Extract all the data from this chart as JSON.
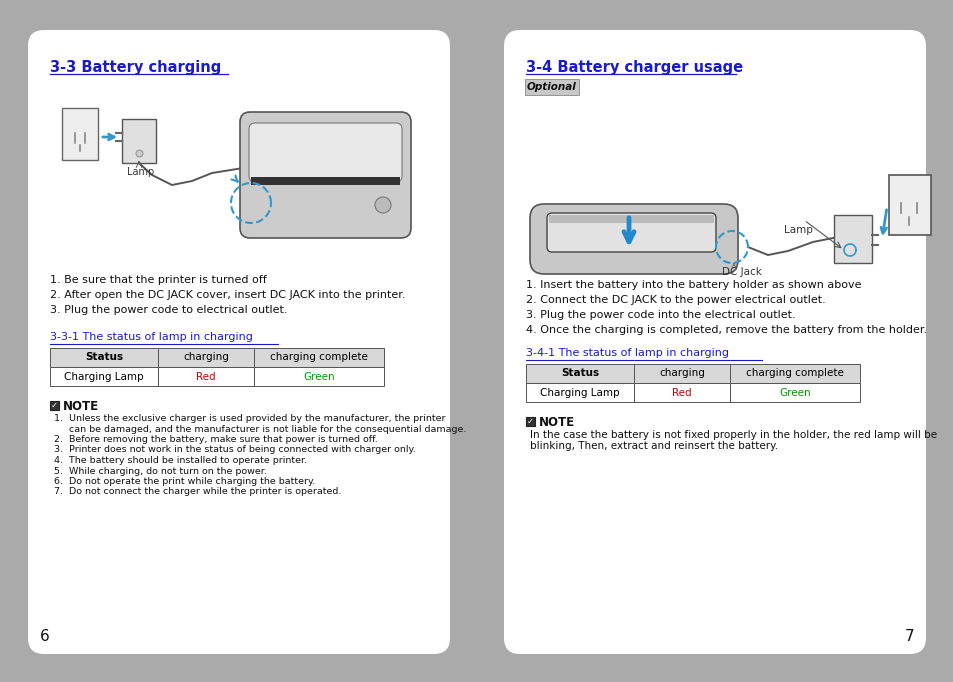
{
  "bg_color": "#aaaaaa",
  "page_bg": "#ffffff",
  "left_panel": {
    "title": "3-3 Battery charging",
    "steps": [
      "1. Be sure that the printer is turned off",
      "2. After open the DC JACK cover, insert DC JACK into the printer.",
      "3. Plug the power code to electrical outlet."
    ],
    "table_title": "3-3-1 The status of lamp in charging",
    "table_header": [
      "Status",
      "charging",
      "charging complete"
    ],
    "table_row": [
      "Charging Lamp",
      "Red",
      "Green"
    ],
    "table_row_colors": [
      "#000000",
      "#cc0000",
      "#009900"
    ],
    "note_items": [
      "1.  Unless the exclusive charger is used provided by the manufacturer, the printer",
      "     can be damaged, and the manufacturer is not liable for the consequential damage.",
      "2.  Before removing the battery, make sure that power is turned off.",
      "3.  Printer does not work in the status of being connected with charger only.",
      "4.  The battery should be installed to operate printer.",
      "5.  While charging, do not turn on the power.",
      "6.  Do not operate the print while charging the battery.",
      "7.  Do not connect the charger while the printer is operated."
    ],
    "page_number": "6"
  },
  "right_panel": {
    "title": "3-4 Battery charger usage",
    "optional_label": "Optional",
    "steps": [
      "1. Insert the battery into the battery holder as shown above",
      "2. Connect the DC JACK to the power electrical outlet.",
      "3. Plug the power code into the electrical outlet.",
      "4. Once the charging is completed, remove the battery from the holder."
    ],
    "table_title": "3-4-1 The status of lamp in charging",
    "table_header": [
      "Status",
      "charging",
      "charging complete"
    ],
    "table_row": [
      "Charging Lamp",
      "Red",
      "Green"
    ],
    "table_row_colors": [
      "#000000",
      "#cc0000",
      "#009900"
    ],
    "note_line1": "In the case the battery is not fixed properly in the holder, the red lamp will be",
    "note_line2": "blinking, Then, extract and reinsert the battery.",
    "page_number": "7"
  }
}
